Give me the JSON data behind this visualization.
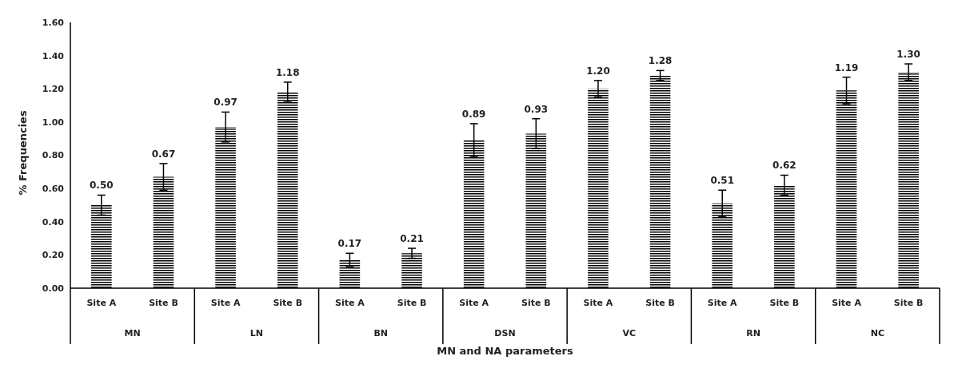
{
  "chart_data": {
    "type": "bar",
    "xlabel": "MN and NA parameters",
    "ylabel": "% Frequencies",
    "categories": [
      "Site A",
      "Site B",
      "Site A",
      "Site B",
      "Site A",
      "Site B",
      "Site A",
      "Site B",
      "Site A",
      "Site B",
      "Site A",
      "Site B",
      "Site A",
      "Site B"
    ],
    "values": [
      0.5,
      0.67,
      0.97,
      1.18,
      0.17,
      0.21,
      0.89,
      0.93,
      1.2,
      1.28,
      0.51,
      0.62,
      1.19,
      1.3
    ],
    "errors": [
      0.06,
      0.08,
      0.09,
      0.06,
      0.04,
      0.03,
      0.1,
      0.09,
      0.05,
      0.03,
      0.08,
      0.06,
      0.08,
      0.05
    ],
    "value_labels": [
      "0.50",
      "0.67",
      "0.97",
      "1.18",
      "0.17",
      "0.21",
      "0.89",
      "0.93",
      "1.20",
      "1.28",
      "0.51",
      "0.62",
      "1.19",
      "1.30"
    ],
    "color": "#000000",
    "annotations": [
      "MN",
      "LN",
      "BN",
      "DSN",
      "VC",
      "RN",
      "NC"
    ],
    "ylim": [
      0,
      1.6
    ],
    "yticks": [
      {
        "value": 0,
        "label": "0.00"
      },
      {
        "value": 0.2,
        "label": "0.20"
      },
      {
        "value": 0.4,
        "label": "0.40"
      },
      {
        "value": 0.6,
        "label": "0.60"
      },
      {
        "value": 0.8,
        "label": "0.80"
      },
      {
        "value": 1.0,
        "label": "1.00"
      },
      {
        "value": 1.2,
        "label": "1.20"
      },
      {
        "value": 1.4,
        "label": "1.40"
      },
      {
        "value": 1.6,
        "label": "1.60"
      }
    ],
    "grid": false,
    "legend": false
  }
}
